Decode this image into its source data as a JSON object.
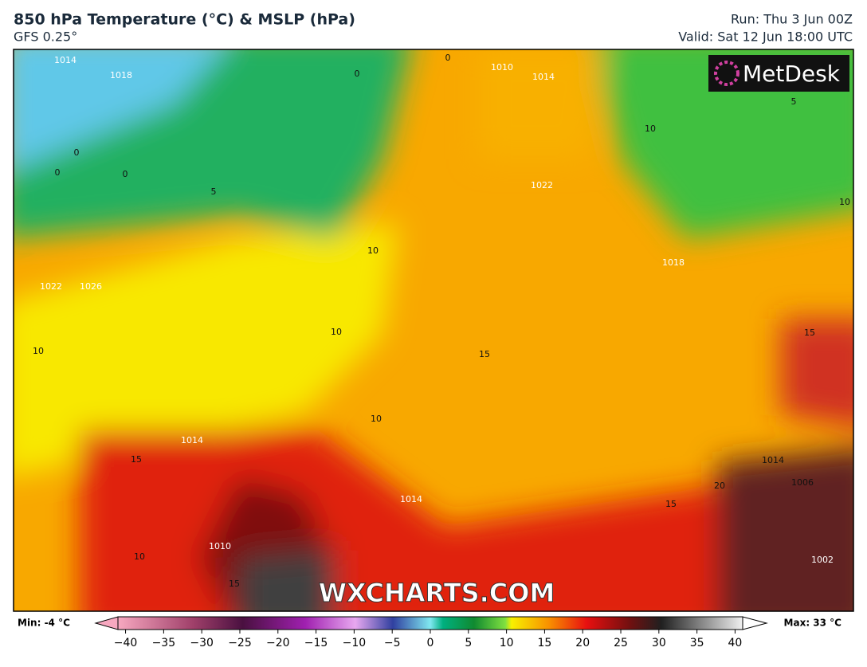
{
  "header": {
    "title": "850 hPa Temperature (°C) & MSLP (hPa)",
    "subtitle": "GFS 0.25°",
    "run": "Run: Thu 3 Jun 00Z",
    "valid": "Valid: Sat 12 Jun 18:00 UTC"
  },
  "logo": "MetDesk",
  "watermark": "WXCHARTS.COM",
  "map_labels": [
    "1014",
    "1018",
    "0",
    "0",
    "0",
    "0",
    "0",
    "5",
    "1010",
    "1014",
    "1022",
    "10",
    "10",
    "10",
    "1022",
    "1026",
    "10",
    "10",
    "15",
    "1018",
    "15",
    "15",
    "1014",
    "1014",
    "15",
    "20",
    "1006",
    "10",
    "1010",
    "15",
    "1002",
    "5",
    "1014",
    "10"
  ],
  "colorbar": {
    "min_label": "Min: -4 °C",
    "max_label": "Max: 33 °C",
    "lim": [
      -41,
      41
    ],
    "ticks": [
      {
        "value": -40,
        "label": "−40"
      },
      {
        "value": -35,
        "label": "−35"
      },
      {
        "value": -30,
        "label": "−30"
      },
      {
        "value": -25,
        "label": "−25"
      },
      {
        "value": -20,
        "label": "−20"
      },
      {
        "value": -15,
        "label": "−15"
      },
      {
        "value": -10,
        "label": "−10"
      },
      {
        "value": -5,
        "label": "−5"
      },
      0,
      5,
      10,
      15,
      20,
      25,
      30,
      35,
      40
    ]
  }
}
